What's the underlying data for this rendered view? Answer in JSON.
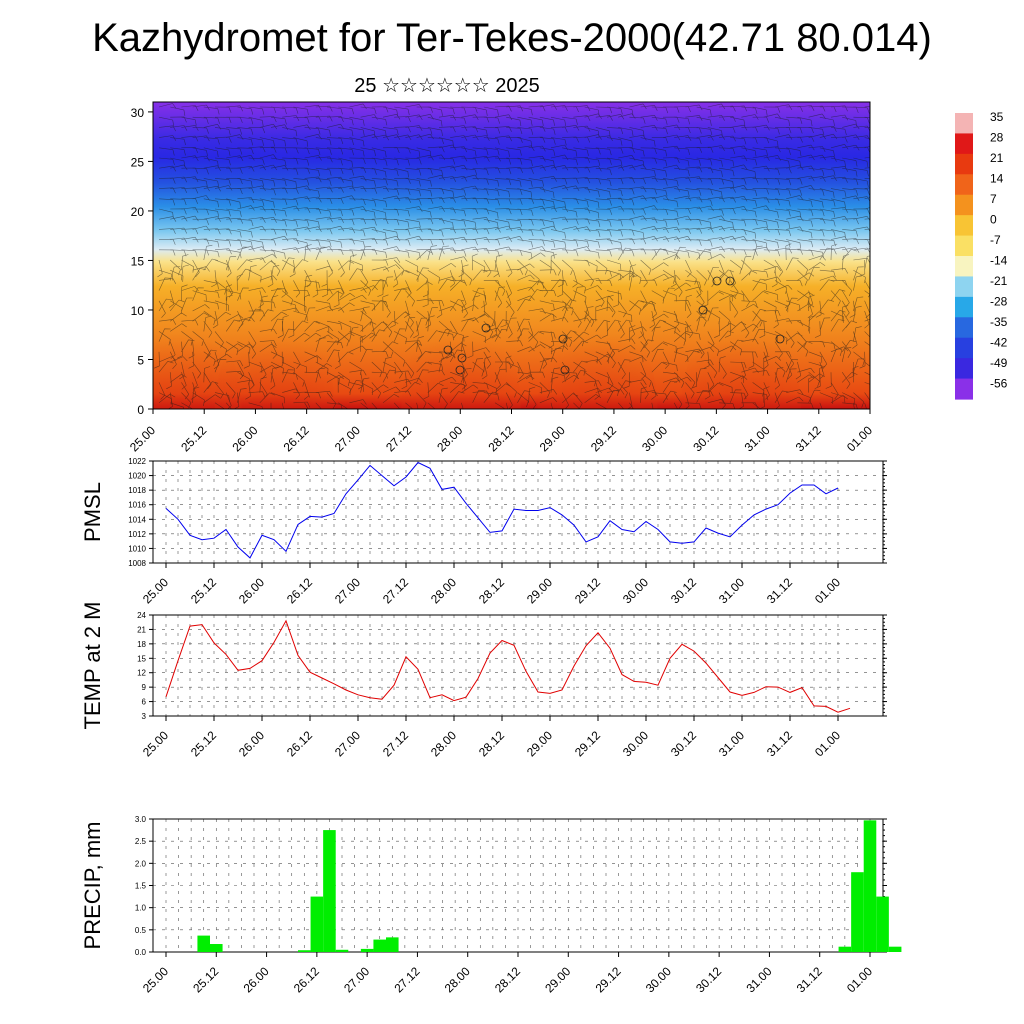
{
  "title": "Kazhydromet for Ter-Tekes-2000(42.71 80.014)",
  "subtitle": "25 ☆☆☆☆☆☆ 2025",
  "chart_data": [
    {
      "type": "heatmap",
      "name": "temperature-cross-section",
      "ylim": [
        0,
        31
      ],
      "yticks": [
        0,
        5,
        10,
        15,
        20,
        25,
        30
      ],
      "xticks": [
        "25.00",
        "25.12",
        "26.00",
        "26.12",
        "27.00",
        "27.12",
        "28.00",
        "28.12",
        "29.00",
        "29.12",
        "30.00",
        "30.12",
        "31.00",
        "31.12",
        "01.00"
      ],
      "colorbar": {
        "labels": [
          "35",
          "28",
          "21",
          "14",
          "7",
          "0",
          "-7",
          "-14",
          "-21",
          "-28",
          "-35",
          "-42",
          "-49",
          "-56"
        ],
        "stops": [
          {
            "value": 35,
            "color": "#f4b4b4"
          },
          {
            "value": 28,
            "color": "#e01818"
          },
          {
            "value": 21,
            "color": "#e83a10"
          },
          {
            "value": 14,
            "color": "#f0641a"
          },
          {
            "value": 7,
            "color": "#f4921e"
          },
          {
            "value": 0,
            "color": "#f8c434"
          },
          {
            "value": -7,
            "color": "#fae064"
          },
          {
            "value": -14,
            "color": "#f8f4c0"
          },
          {
            "value": -21,
            "color": "#8ed4f0"
          },
          {
            "value": -28,
            "color": "#28a8e8"
          },
          {
            "value": -35,
            "color": "#2868e0"
          },
          {
            "value": -42,
            "color": "#2840e0"
          },
          {
            "value": -49,
            "color": "#3a28e0"
          },
          {
            "value": -56,
            "color": "#8a30e8"
          }
        ]
      }
    },
    {
      "type": "line",
      "name": "pmsl",
      "ylabel": "PMSL",
      "ylim": [
        1008,
        1022
      ],
      "yticks": [
        1008,
        1010,
        1012,
        1014,
        1016,
        1018,
        1020,
        1022
      ],
      "xticks": [
        "25.00",
        "25.12",
        "26.00",
        "26.12",
        "27.00",
        "27.12",
        "28.00",
        "28.12",
        "29.00",
        "29.12",
        "30.00",
        "30.12",
        "31.00",
        "31.12",
        "01.00"
      ],
      "color": "#0000ee",
      "values": [
        1015.5,
        1014.0,
        1011.8,
        1011.2,
        1011.4,
        1012.6,
        1010.2,
        1008.7,
        1011.8,
        1011.2,
        1009.6,
        1013.3,
        1014.4,
        1014.3,
        1014.8,
        1017.5,
        1019.4,
        1021.4,
        1020.0,
        1018.6,
        1019.8,
        1021.8,
        1021.0,
        1018.1,
        1018.4,
        1016.2,
        1014.2,
        1012.2,
        1012.4,
        1015.4,
        1015.2,
        1015.2,
        1015.6,
        1014.6,
        1013.2,
        1010.9,
        1011.6,
        1013.8,
        1012.6,
        1012.3,
        1013.7,
        1012.6,
        1010.9,
        1010.7,
        1010.9,
        1012.8,
        1012.1,
        1011.6,
        1013.2,
        1014.6,
        1015.4,
        1016.0,
        1017.6,
        1018.7,
        1018.7,
        1017.5,
        1018.3
      ]
    },
    {
      "type": "line",
      "name": "temp-2m",
      "ylabel": "TEMP at 2 M",
      "ylim": [
        3,
        24
      ],
      "yticks": [
        3,
        6,
        9,
        12,
        15,
        18,
        21,
        24
      ],
      "xticks": [
        "25.00",
        "25.12",
        "26.00",
        "26.12",
        "27.00",
        "27.12",
        "28.00",
        "28.12",
        "29.00",
        "29.12",
        "30.00",
        "30.12",
        "31.00",
        "31.12",
        "01.00"
      ],
      "color": "#e00000",
      "values": [
        7.0,
        14.5,
        21.7,
        22.0,
        18.2,
        15.8,
        12.5,
        12.9,
        14.5,
        18.3,
        22.8,
        15.6,
        12.1,
        10.9,
        9.7,
        8.4,
        7.4,
        6.8,
        6.5,
        9.4,
        15.3,
        12.7,
        6.8,
        7.4,
        6.2,
        6.9,
        10.8,
        16.1,
        18.7,
        17.7,
        12.3,
        8.0,
        7.7,
        8.4,
        13.4,
        17.6,
        20.3,
        17.1,
        11.6,
        10.2,
        10.0,
        9.4,
        15.0,
        17.9,
        16.5,
        14.0,
        11.0,
        8.0,
        7.3,
        7.9,
        9.1,
        9.0,
        7.9,
        8.9,
        5.1,
        5.0,
        3.8,
        4.6
      ]
    },
    {
      "type": "bar",
      "name": "precip",
      "ylabel": "PRECIP, mm",
      "ylim": [
        0,
        3
      ],
      "yticks": [
        "0.0",
        "0.5",
        "1.0",
        "1.5",
        "2.0",
        "2.5",
        "3.0"
      ],
      "xticks": [
        "25.00",
        "25.12",
        "26.00",
        "26.12",
        "27.00",
        "27.12",
        "28.00",
        "28.12",
        "29.00",
        "29.12",
        "30.00",
        "30.12",
        "31.00",
        "31.12",
        "01.00"
      ],
      "color": "#00ee00",
      "values": [
        0,
        0,
        0,
        0.37,
        0.18,
        0,
        0,
        0,
        0,
        0,
        0,
        0.04,
        1.25,
        2.75,
        0.05,
        0,
        0.07,
        0.28,
        0.33,
        0,
        0,
        0,
        0,
        0,
        0,
        0,
        0,
        0,
        0,
        0,
        0,
        0,
        0,
        0,
        0,
        0,
        0,
        0,
        0,
        0,
        0,
        0,
        0,
        0,
        0,
        0,
        0,
        0,
        0,
        0,
        0,
        0,
        0,
        0,
        0.12,
        1.8,
        2.97,
        1.25,
        0.12,
        0
      ]
    }
  ]
}
